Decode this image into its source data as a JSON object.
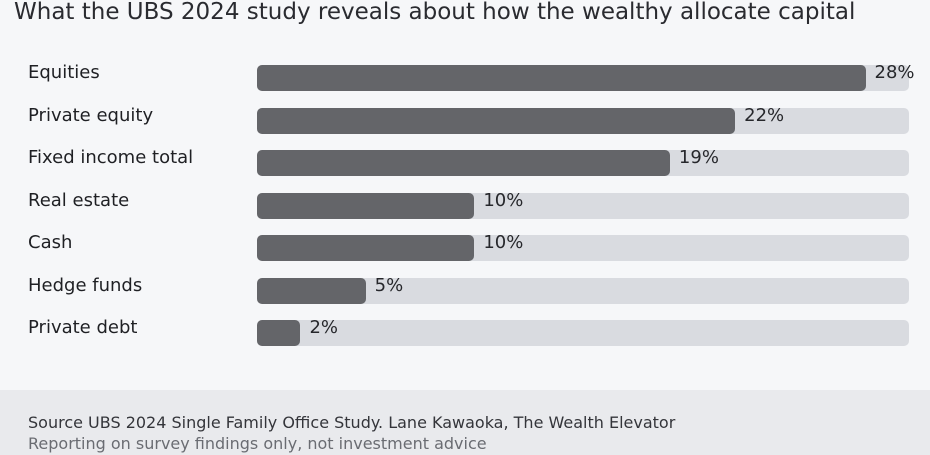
{
  "title": "What the UBS 2024 study reveals about how the wealthy allocate capital",
  "footer": {
    "source": "Source UBS 2024 Single Family Office Study. Lane Kawaoka, The Wealth Elevator",
    "note": "Reporting on survey findings only, not investment advice"
  },
  "colors": {
    "background": "#f6f7f9",
    "bar_fill": "#646569",
    "bar_track": "#d9dbe0",
    "footer_background": "#e9eaed"
  },
  "chart_data": {
    "type": "bar",
    "orientation": "horizontal",
    "title": "What the UBS 2024 study reveals about how the wealthy allocate capital",
    "categories": [
      "Equities",
      "Private equity",
      "Fixed income total",
      "Real estate",
      "Cash",
      "Hedge funds",
      "Private debt"
    ],
    "values": [
      28,
      22,
      19,
      10,
      10,
      5,
      2
    ],
    "value_labels": [
      "28%",
      "22%",
      "19%",
      "10%",
      "10%",
      "5%",
      "2%"
    ],
    "xlim": [
      0,
      30
    ],
    "xlabel": "",
    "ylabel": "",
    "grid": false,
    "legend": "none"
  }
}
